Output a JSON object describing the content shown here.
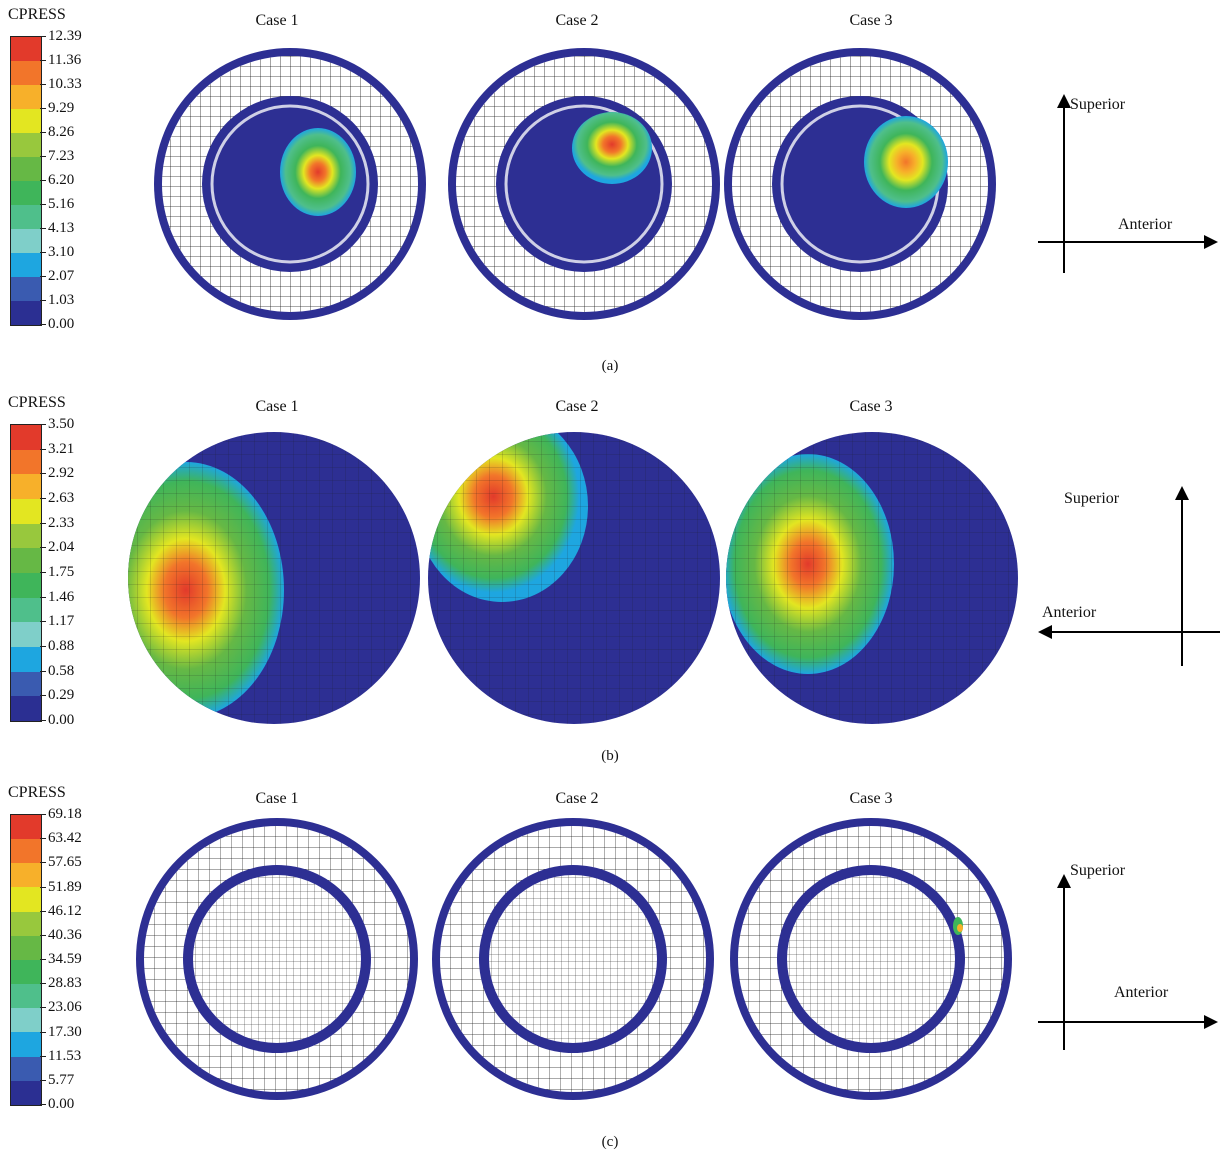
{
  "colors": {
    "navy": "#2d2f93",
    "mesh": "#1b1b1b",
    "scale": [
      "#2b2f92",
      "#3a5bb0",
      "#1ea6e0",
      "#7fcfc9",
      "#4fbf8b",
      "#3fb55a",
      "#66b845",
      "#98c83d",
      "#e3e621",
      "#f7b02a",
      "#f2752a",
      "#e23a2b"
    ]
  },
  "panels": [
    {
      "id": "a",
      "legend_title": "CPRESS",
      "legend_values": [
        "12.39",
        "11.36",
        "10.33",
        "9.29",
        "8.26",
        "7.23",
        "6.20",
        "5.16",
        "4.13",
        "3.10",
        "2.07",
        "1.03",
        "0.00"
      ],
      "case_labels": [
        "Case 1",
        "Case 2",
        "Case 3"
      ],
      "sublabel": "(a)",
      "axis": {
        "vertical": "Superior",
        "horizontal": "Anterior"
      }
    },
    {
      "id": "b",
      "legend_title": "CPRESS",
      "legend_values": [
        "3.50",
        "3.21",
        "2.92",
        "2.63",
        "2.33",
        "2.04",
        "1.75",
        "1.46",
        "1.17",
        "0.88",
        "0.58",
        "0.29",
        "0.00"
      ],
      "case_labels": [
        "Case 1",
        "Case 2",
        "Case 3"
      ],
      "sublabel": "(b)",
      "axis": {
        "vertical": "Superior",
        "horizontal": "Anterior"
      }
    },
    {
      "id": "c",
      "legend_title": "CPRESS",
      "legend_values": [
        "69.18",
        "63.42",
        "57.65",
        "51.89",
        "46.12",
        "40.36",
        "34.59",
        "28.83",
        "23.06",
        "17.30",
        "11.53",
        "5.77",
        "0.00"
      ],
      "case_labels": [
        "Case 1",
        "Case 2",
        "Case 3"
      ],
      "sublabel": "(c)",
      "axis": {
        "vertical": "Superior",
        "horizontal": "Anterior"
      }
    }
  ]
}
